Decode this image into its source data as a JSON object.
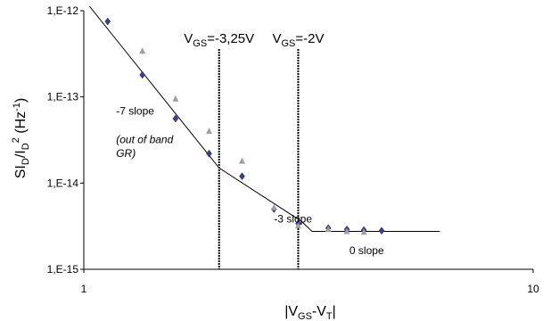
{
  "chart_data": {
    "type": "scatter",
    "xscale": "log",
    "yscale": "log",
    "xlim": [
      1,
      10
    ],
    "ylim": [
      1e-15,
      1e-12
    ],
    "xticks": [
      {
        "value": 1,
        "label": "1"
      },
      {
        "value": 10,
        "label": "10"
      }
    ],
    "yticks": [
      {
        "value": 1e-12,
        "label": "1,E-12"
      },
      {
        "value": 1e-13,
        "label": "1,E-13"
      },
      {
        "value": 1e-14,
        "label": "1,E-14"
      },
      {
        "value": 1e-15,
        "label": "1,E-15"
      }
    ],
    "ylabel": {
      "main": "SI",
      "sub1": "D",
      "mid": "/I",
      "sub2": "D",
      "sup": "2",
      "unit": " (Hz",
      "unitsup": "-1",
      "close": ")"
    },
    "xlabel": {
      "pre": "|V",
      "sub1": "GS",
      "mid": "-V",
      "sub2": "T",
      "post": "|"
    },
    "series": [
      {
        "marker": "diamond",
        "color": "#3a3f8f",
        "points": [
          [
            1.13,
            7.5e-13
          ],
          [
            1.35,
            1.8e-13
          ],
          [
            1.6,
            5.6e-14
          ],
          [
            1.9,
            2.2e-14
          ],
          [
            2.25,
            1.2e-14
          ],
          [
            2.65,
            5e-15
          ],
          [
            3.0,
            3.4e-15
          ],
          [
            3.5,
            3e-15
          ],
          [
            3.85,
            2.9e-15
          ],
          [
            4.2,
            2.85e-15
          ],
          [
            4.6,
            2.8e-15
          ]
        ]
      },
      {
        "marker": "triangle",
        "color": "#a0a0a0",
        "points": [
          [
            1.35,
            3.4e-13
          ],
          [
            1.6,
            9.5e-14
          ],
          [
            1.9,
            4e-14
          ],
          [
            2.25,
            1.8e-14
          ],
          [
            2.65,
            5.2e-15
          ],
          [
            3.0,
            3.2e-15
          ],
          [
            3.5,
            2.9e-15
          ],
          [
            3.85,
            2.75e-15
          ],
          [
            4.2,
            2.7e-15
          ]
        ]
      }
    ],
    "fit_line": {
      "color": "#000000",
      "points": [
        [
          1.03,
          1.12e-12
        ],
        [
          2.0,
          1.5e-14
        ],
        [
          3.05,
          3.6e-15
        ],
        [
          3.22,
          2.75e-15
        ],
        [
          6.2,
          2.75e-15
        ]
      ]
    },
    "vlines": [
      {
        "x": 2.0,
        "label": {
          "pre": "V",
          "sub": "GS",
          "post": "=-3,25V"
        }
      },
      {
        "x": 3.0,
        "label": {
          "pre": "V",
          "sub": "GS",
          "post": "=-2V"
        }
      }
    ],
    "annotations": [
      {
        "text": "-7 slope",
        "x": 1.18,
        "y": 6.2e-14,
        "italic": false
      },
      {
        "text": "(out of band",
        "x": 1.18,
        "y": 2.9e-14,
        "italic": true
      },
      {
        "text": "GR)",
        "x": 1.18,
        "y": 2e-14,
        "italic": true
      },
      {
        "text": "-3 slope",
        "x": 2.65,
        "y": 3.5e-15,
        "italic": false
      },
      {
        "text": "0 slope",
        "x": 3.9,
        "y": 1.5e-15,
        "italic": false
      }
    ]
  }
}
